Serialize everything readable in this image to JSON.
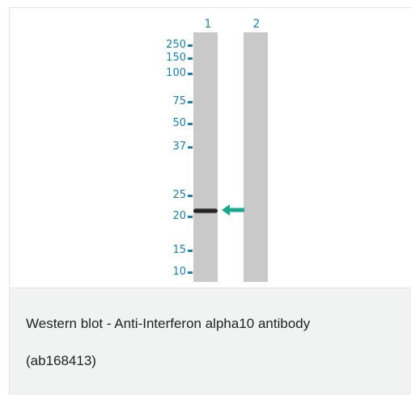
{
  "figure": {
    "lanes": [
      {
        "label": "1"
      },
      {
        "label": "2"
      }
    ],
    "markers": [
      "250",
      "150",
      "100",
      "75",
      "50",
      "37",
      "25",
      "20",
      "15",
      "10"
    ],
    "colors": {
      "marker": "#1f7fa6",
      "arrow": "#1aa88e",
      "lane": "#c9c9c9",
      "caption_bg": "#f1f2f2"
    },
    "arrow_icon": "arrow-left-icon"
  },
  "caption": {
    "line1": "Western blot - Anti-Interferon alpha10 antibody",
    "line2": "(ab168413)"
  }
}
